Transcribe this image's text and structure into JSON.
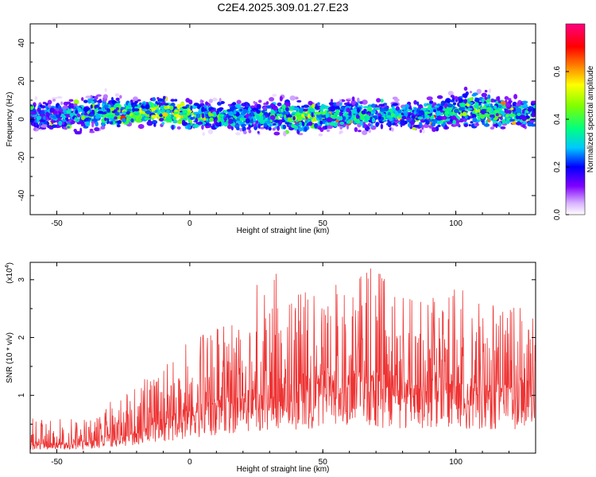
{
  "title": "C2E4.2025.309.01.27.E23",
  "chart_data": [
    {
      "type": "heatmap",
      "xlabel": "Height of straight line (km)",
      "ylabel": "Frequency (Hz)",
      "xlim": [
        -60,
        130
      ],
      "ylim": [
        -50,
        50
      ],
      "xticks": [
        -50,
        0,
        50,
        100
      ],
      "yticks": [
        -40,
        -20,
        0,
        20,
        40
      ],
      "colorbar": {
        "label": "Normalized spectral amplitude",
        "ticks": [
          "0.0",
          "0.2",
          "0.4",
          "0.6"
        ],
        "range": [
          0,
          0.8
        ],
        "colormap": [
          "#ffffff",
          "#d9b3ff",
          "#8000ff",
          "#0000ff",
          "#00c8ff",
          "#00ff80",
          "#80ff00",
          "#ffff00",
          "#ff8000",
          "#ff0000",
          "#ff0080"
        ]
      },
      "band": {
        "x_centers": [
          -55,
          -45,
          -35,
          -25,
          -15,
          -5,
          5,
          15,
          25,
          35,
          45,
          55,
          65,
          75,
          85,
          95,
          105,
          115,
          125
        ],
        "center_freq": [
          2,
          1,
          4,
          3,
          4,
          3,
          2,
          2,
          1,
          2,
          1,
          2,
          3,
          2,
          2,
          3,
          6,
          4,
          3
        ],
        "half_width": [
          8,
          9,
          10,
          8,
          7,
          8,
          8,
          8,
          8,
          9,
          8,
          8,
          9,
          8,
          8,
          9,
          10,
          9,
          8
        ],
        "peak_amplitude": [
          0.35,
          0.4,
          0.45,
          0.55,
          0.6,
          0.65,
          0.5,
          0.45,
          0.45,
          0.5,
          0.6,
          0.5,
          0.45,
          0.45,
          0.4,
          0.45,
          0.55,
          0.5,
          0.45
        ]
      }
    },
    {
      "type": "line",
      "xlabel": "Height of straight line (km)",
      "ylabel": "SNR (10 * v/v)",
      "yscale_label": "(x10",
      "yscale_exponent": "4",
      "xlim": [
        -60,
        130
      ],
      "ylim": [
        0,
        3.3
      ],
      "xticks": [
        -50,
        0,
        50,
        100
      ],
      "yticks": [
        1,
        2,
        3
      ],
      "color": "#ee3333",
      "envelope": {
        "x": [
          -60,
          -40,
          -30,
          -20,
          -10,
          0,
          10,
          20,
          30,
          40,
          50,
          60,
          70,
          80,
          90,
          100,
          110,
          120,
          130
        ],
        "baseline": [
          0.15,
          0.15,
          0.25,
          0.3,
          0.5,
          0.6,
          0.75,
          0.85,
          0.9,
          1.0,
          1.1,
          1.1,
          1.1,
          1.05,
          1.1,
          1.05,
          1.0,
          1.0,
          1.0
        ],
        "peak": [
          0.6,
          0.6,
          0.9,
          1.2,
          1.5,
          2.0,
          2.3,
          2.7,
          3.2,
          2.8,
          3.0,
          2.9,
          3.3,
          2.8,
          2.7,
          2.9,
          2.6,
          2.6,
          2.5
        ]
      }
    }
  ]
}
